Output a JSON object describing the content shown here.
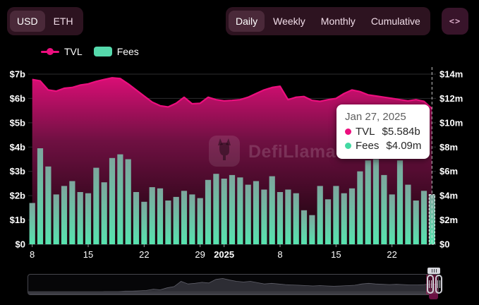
{
  "header": {
    "currency_toggle": {
      "options": [
        "USD",
        "ETH"
      ],
      "selected": "USD"
    },
    "interval_tabs": {
      "options": [
        "Daily",
        "Weekly",
        "Monthly",
        "Cumulative"
      ],
      "selected": "Daily"
    },
    "embed_icon": "<>"
  },
  "legend": [
    {
      "label": "TVL",
      "color": "#ec0e7e",
      "marker": "line-dot"
    },
    {
      "label": "Fees",
      "color": "#56d9ac",
      "marker": "rounded-square"
    }
  ],
  "tooltip": {
    "date": "Jan 27, 2025",
    "rows": [
      {
        "label": "TVL",
        "value": "$5.584b",
        "color": "#ec0e7e"
      },
      {
        "label": "Fees",
        "value": "$4.09m",
        "color": "#43d9a3"
      }
    ]
  },
  "watermark": "DefiLlama",
  "chart_data": {
    "type": [
      "area",
      "bar"
    ],
    "title": "",
    "dates": [
      "2024-12-08",
      "2024-12-09",
      "2024-12-10",
      "2024-12-11",
      "2024-12-12",
      "2024-12-13",
      "2024-12-14",
      "2024-12-15",
      "2024-12-16",
      "2024-12-17",
      "2024-12-18",
      "2024-12-19",
      "2024-12-20",
      "2024-12-21",
      "2024-12-22",
      "2024-12-23",
      "2024-12-24",
      "2024-12-25",
      "2024-12-26",
      "2024-12-27",
      "2024-12-28",
      "2024-12-29",
      "2024-12-30",
      "2024-12-31",
      "2025-01-01",
      "2025-01-02",
      "2025-01-03",
      "2025-01-04",
      "2025-01-05",
      "2025-01-06",
      "2025-01-07",
      "2025-01-08",
      "2025-01-09",
      "2025-01-10",
      "2025-01-11",
      "2025-01-12",
      "2025-01-13",
      "2025-01-14",
      "2025-01-15",
      "2025-01-16",
      "2025-01-17",
      "2025-01-18",
      "2025-01-19",
      "2025-01-20",
      "2025-01-21",
      "2025-01-22",
      "2025-01-23",
      "2025-01-24",
      "2025-01-25",
      "2025-01-26",
      "2025-01-27"
    ],
    "series": [
      {
        "name": "TVL",
        "type": "area",
        "axis": "left",
        "unit": "$b",
        "values": [
          6.78,
          6.72,
          6.35,
          6.3,
          6.42,
          6.45,
          6.55,
          6.6,
          6.7,
          6.78,
          6.85,
          6.82,
          6.6,
          6.35,
          6.1,
          5.85,
          5.7,
          5.65,
          5.8,
          6.05,
          5.78,
          5.8,
          6.05,
          5.95,
          5.9,
          5.92,
          5.95,
          6.05,
          6.2,
          6.35,
          6.45,
          6.5,
          5.95,
          6.05,
          6.08,
          5.92,
          5.88,
          5.95,
          6.0,
          6.2,
          6.35,
          6.28,
          6.15,
          6.1,
          6.05,
          6.0,
          5.95,
          5.9,
          5.95,
          5.88,
          5.584
        ]
      },
      {
        "name": "Fees",
        "type": "bar",
        "axis": "right",
        "unit": "$m",
        "values": [
          3.4,
          7.9,
          6.4,
          4.1,
          4.8,
          5.2,
          4.3,
          4.2,
          6.3,
          5.1,
          7.1,
          7.4,
          7.0,
          4.3,
          3.5,
          4.7,
          4.6,
          3.6,
          3.9,
          4.4,
          4.1,
          3.8,
          5.3,
          5.8,
          5.4,
          5.7,
          5.5,
          4.9,
          5.2,
          4.5,
          5.6,
          4.3,
          4.5,
          4.2,
          2.8,
          2.4,
          4.8,
          3.7,
          4.8,
          4.2,
          4.6,
          6.0,
          6.9,
          7.0,
          5.7,
          4.1,
          6.9,
          4.9,
          3.6,
          4.4,
          4.09
        ]
      }
    ],
    "left_axis": {
      "min": 0,
      "max": 7,
      "ticks_top_down": [
        "$7b",
        "$6b",
        "$5b",
        "$4b",
        "$3b",
        "$2b",
        "$1b",
        "$0"
      ]
    },
    "right_axis": {
      "min": 0,
      "max": 14,
      "ticks_top_down": [
        "$14m",
        "$12m",
        "$10m",
        "$8m",
        "$6m",
        "$4m",
        "$2m",
        "$0"
      ]
    },
    "x_ticks": [
      {
        "label": "8",
        "day": 0,
        "bold": false
      },
      {
        "label": "15",
        "day": 7,
        "bold": false
      },
      {
        "label": "22",
        "day": 14,
        "bold": false
      },
      {
        "label": "29",
        "day": 21,
        "bold": false
      },
      {
        "label": "2025",
        "day": 24,
        "bold": true
      },
      {
        "label": "8",
        "day": 31,
        "bold": false
      },
      {
        "label": "15",
        "day": 38,
        "bold": false
      },
      {
        "label": "22",
        "day": 45,
        "bold": false
      }
    ],
    "highlight_day_index": 50,
    "grid": true,
    "legend_position": "top-left",
    "minimap": {
      "profile": [
        0.05,
        0.05,
        0.05,
        0.05,
        0.05,
        0.05,
        0.06,
        0.06,
        0.06,
        0.06,
        0.06,
        0.07,
        0.07,
        0.07,
        0.08,
        0.08,
        0.09,
        0.1,
        0.14,
        0.12,
        0.18,
        0.22,
        0.38,
        0.3,
        0.32,
        0.35,
        0.33,
        0.44,
        0.47,
        0.42,
        0.38,
        0.36,
        0.38,
        0.34,
        0.3,
        0.32,
        0.3,
        0.28,
        0.27,
        0.26,
        0.25,
        0.24,
        0.25,
        0.24,
        0.23,
        0.24,
        0.25,
        0.26,
        0.3,
        0.32,
        0.3,
        0.29,
        0.28,
        0.29,
        0.28,
        0.27,
        0.27,
        0.28,
        0.3,
        0.29
      ],
      "selection_start_frac": 0.973,
      "selection_end_frac": 1.0
    }
  },
  "colors": {
    "background": "#000000",
    "panel": "#2d1320",
    "panel_selected": "#4a2939",
    "accent_pink": "#ec0e7e",
    "mint": "#56d9ac",
    "bar_top": "#7da69d",
    "bar_bottom": "#58e2af",
    "area_top": "#d90e75",
    "area_mid": "#6f1042",
    "area_bottom": "#140309",
    "grid": "#2b2b2e",
    "axis_text": "#ffffff",
    "crosshair": "#e8e8e8",
    "minimap_fill": "#2d2d34",
    "minimap_stroke": "#60606a",
    "brush_selection": "#cd186a"
  }
}
